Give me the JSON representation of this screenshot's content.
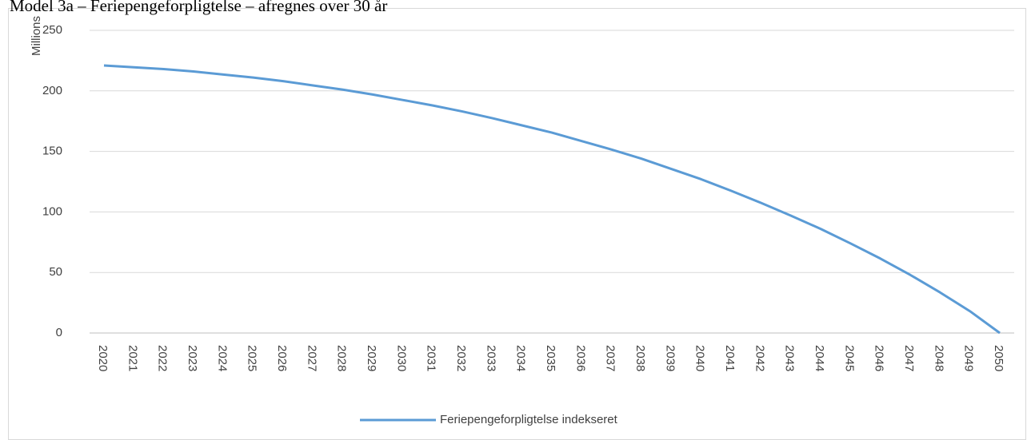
{
  "chart_data": {
    "type": "line",
    "title": "Model 3a – Feriepengeforpligtelse – afregnes over 30 år",
    "y_label": "Millions",
    "categories": [
      "2020",
      "2021",
      "2022",
      "2023",
      "2024",
      "2025",
      "2026",
      "2027",
      "2028",
      "2029",
      "2030",
      "2031",
      "2032",
      "2033",
      "2034",
      "2035",
      "2036",
      "2037",
      "2038",
      "2039",
      "2040",
      "2041",
      "2042",
      "2043",
      "2044",
      "2045",
      "2046",
      "2047",
      "2048",
      "2049",
      "2050"
    ],
    "series": [
      {
        "name": "Feriepengeforpligtelse indekseret",
        "color": "#5b9bd5",
        "values": [
          221,
          219.5,
          218,
          216,
          213.5,
          211,
          208,
          204.5,
          201,
          197,
          192.5,
          188,
          183,
          177.5,
          171.5,
          165.5,
          158.5,
          151.5,
          144,
          135.5,
          127,
          117.5,
          107.5,
          97,
          86,
          74,
          61.5,
          48,
          33.5,
          18,
          0
        ]
      }
    ],
    "ylim": [
      0,
      250
    ],
    "yticks": [
      0,
      50,
      100,
      150,
      200,
      250
    ],
    "grid": true,
    "legend": "bottom"
  }
}
